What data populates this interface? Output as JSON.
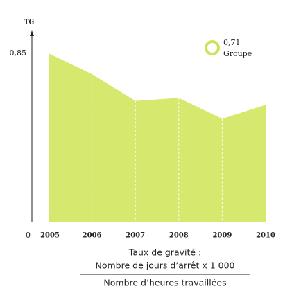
{
  "chart_data": {
    "type": "area",
    "y_label": "TG",
    "categories": [
      "2005",
      "2006",
      "2007",
      "2008",
      "2009",
      "2010"
    ],
    "values": [
      0.85,
      0.745,
      0.61,
      0.625,
      0.52,
      0.59
    ],
    "color": "#d6e96e",
    "ylim": [
      0,
      0.85
    ],
    "yticks": [
      0,
      {
        "value": 0.85,
        "label": "0,85"
      }
    ],
    "annotations": [
      "0,71",
      "Groupe"
    ],
    "annotation_color": "#cde35a",
    "footnote": {
      "line1": "Taux de gravité :",
      "numerator": "Nombre de jours d’arrêt x 1 000",
      "denominator": "Nombre d’heures travaillées"
    }
  }
}
